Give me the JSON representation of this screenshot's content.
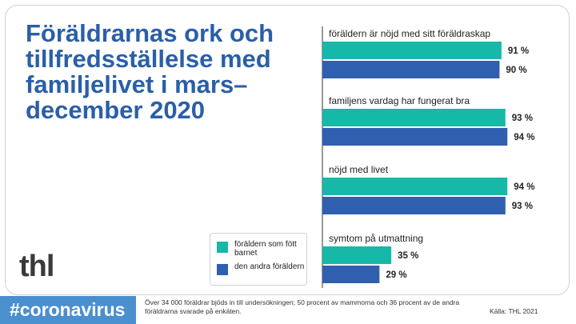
{
  "title": "Föräldrarnas ork och tillfredsställelse med familjelivet i mars–december 2020",
  "logo": "thl",
  "hashtag": "#coronavirus",
  "footnote": "Över 34 000 föräldrar bjöds in till undersökningen; 50 procent av mammorna och 36 procent av de andra föräldrarna svarade på enkäten.",
  "source": "Källa: THL 2021",
  "colors": {
    "series1": "#16b8a7",
    "series2": "#2f5fae",
    "title": "#2a5fa8",
    "hashtag_bg": "#4a8fce"
  },
  "chart_data": {
    "type": "bar",
    "orientation": "horizontal",
    "unit": "%",
    "categories": [
      "föräldern är nöjd med sitt föräldraskap",
      "familjens vardag har fungerat bra",
      "nöjd med livet",
      "symtom på utmattning"
    ],
    "series": [
      {
        "name": "föräldern som fött barnet",
        "values": [
          91,
          93,
          94,
          35
        ],
        "labels": [
          "91 %",
          "93 %",
          "94 %",
          "35 %"
        ]
      },
      {
        "name": "den andra föräldern",
        "values": [
          90,
          94,
          93,
          29
        ],
        "labels": [
          "90 %",
          "94 %",
          "93 %",
          "29 %"
        ]
      }
    ],
    "xlim": [
      0,
      100
    ],
    "legend": "bottom-left"
  }
}
